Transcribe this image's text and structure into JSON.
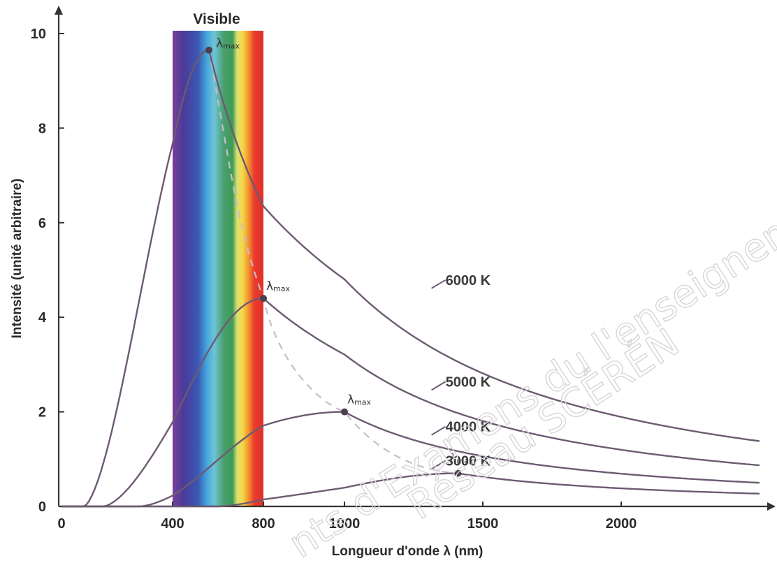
{
  "chart_data": {
    "type": "line",
    "xlabel": "Longueur d'onde λ (nm)",
    "ylabel": "Intensité (unité arbitraire)",
    "xlim": [
      0,
      2500
    ],
    "ylim": [
      0,
      10
    ],
    "x_ticks": [
      "0",
      "400",
      "800",
      "1000",
      "1500",
      "2000"
    ],
    "x_tick_values": [
      0,
      400,
      800,
      1000,
      1500,
      2000
    ],
    "y_ticks": [
      "0",
      "2",
      "4",
      "6",
      "8",
      "10"
    ],
    "y_tick_values": [
      0,
      2,
      4,
      6,
      8,
      10
    ],
    "visible_band": {
      "label": "Visible",
      "from": 400,
      "to": 800
    },
    "peak_label": "λmax",
    "peak_label_main": "λ",
    "peak_label_sub": "max",
    "series": [
      {
        "name": "6000 K",
        "peak": {
          "x": 560,
          "y": 9.65
        }
      },
      {
        "name": "5000 K",
        "peak": {
          "x": 800,
          "y": 4.4
        }
      },
      {
        "name": "4000 K",
        "peak": {
          "x": 1000,
          "y": 2.0
        }
      },
      {
        "name": "3000 K",
        "peak": {
          "x": 1410,
          "y": 0.7
        }
      }
    ],
    "grid": false,
    "legend": "none"
  },
  "colors": {
    "curve": "#6d5a72",
    "axis": "#333333",
    "dashed": "#c8bcc8"
  },
  "watermark": {
    "line1": "nts d'Examens du l'enseignement profess",
    "line2": "Réseau SCÉRÉN"
  }
}
